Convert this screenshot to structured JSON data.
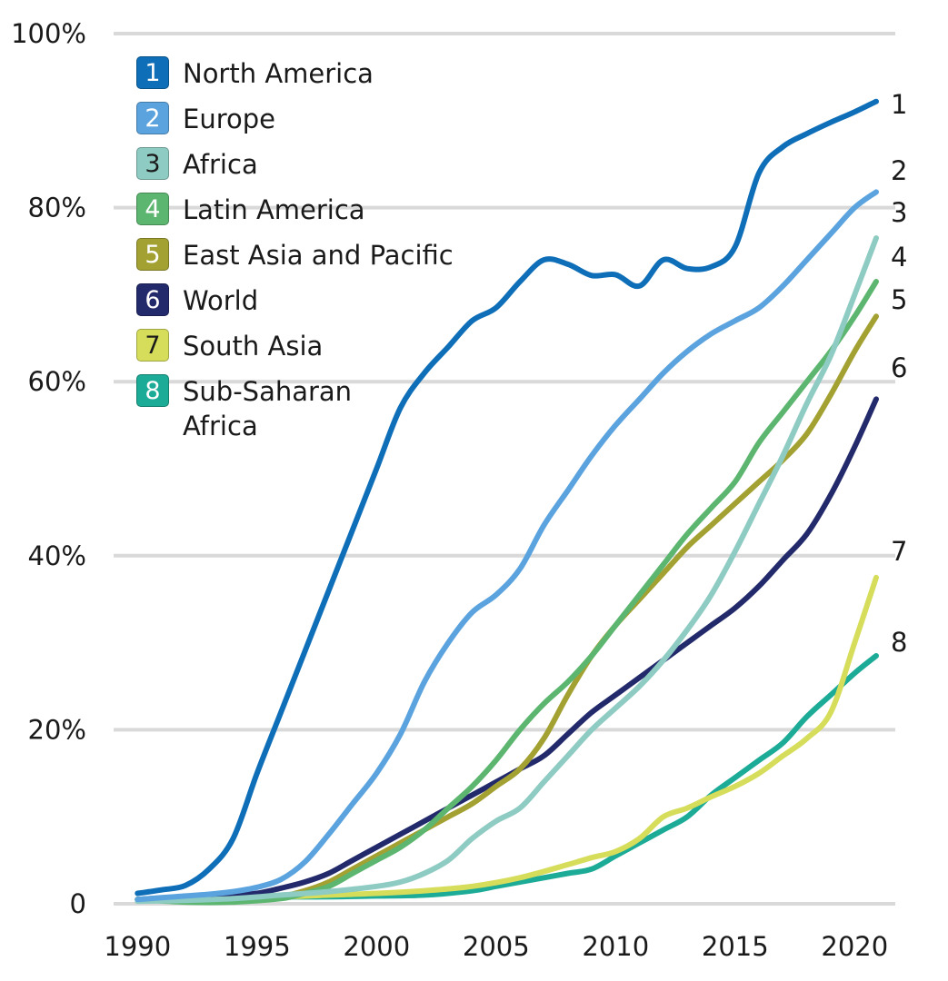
{
  "chart_data": {
    "type": "line",
    "title": "",
    "xlabel": "",
    "ylabel": "",
    "ylim": [
      0,
      100
    ],
    "xlim": [
      1990,
      2021
    ],
    "y_ticks": [
      "0",
      "20%",
      "40%",
      "60%",
      "80%",
      "100%"
    ],
    "y_tick_values": [
      0,
      20,
      40,
      60,
      80,
      100
    ],
    "x_ticks": [
      "1990",
      "1995",
      "2000",
      "2005",
      "2010",
      "2015",
      "2020"
    ],
    "x_tick_values": [
      1990,
      1995,
      2000,
      2005,
      2010,
      2015,
      2020
    ],
    "grid": true,
    "legend_position": "top-left",
    "series": [
      {
        "num": "1",
        "name": "North America",
        "color": "#0e6eb8",
        "x": [
          1990,
          1991,
          1992,
          1993,
          1994,
          1995,
          1996,
          1997,
          1998,
          1999,
          2000,
          2001,
          2002,
          2003,
          2004,
          2005,
          2006,
          2007,
          2008,
          2009,
          2010,
          2011,
          2012,
          2013,
          2014,
          2015,
          2016,
          2017,
          2018,
          2019,
          2020,
          2020.9
        ],
        "y": [
          1.2,
          1.6,
          2.1,
          4.0,
          7.5,
          15,
          22,
          29,
          36,
          43,
          50,
          57,
          61,
          64,
          67,
          68.5,
          71.5,
          74,
          73.5,
          72.2,
          72.3,
          71.0,
          74.0,
          73.0,
          73.2,
          75.5,
          84.0,
          87,
          88.5,
          89.8,
          91,
          92.2
        ]
      },
      {
        "num": "2",
        "name": "Europe",
        "color": "#5ba3de",
        "x": [
          1990,
          1991,
          1992,
          1993,
          1994,
          1995,
          1996,
          1997,
          1998,
          1999,
          2000,
          2001,
          2002,
          2003,
          2004,
          2005,
          2006,
          2007,
          2008,
          2009,
          2010,
          2011,
          2012,
          2013,
          2014,
          2015,
          2016,
          2017,
          2018,
          2019,
          2020,
          2020.9
        ],
        "y": [
          0.5,
          0.7,
          0.9,
          1.1,
          1.4,
          1.9,
          2.8,
          4.8,
          8,
          11.5,
          15,
          19.5,
          25.5,
          30,
          33.5,
          35.5,
          38.5,
          43.5,
          47.5,
          51.5,
          55,
          58,
          61,
          63.5,
          65.5,
          67,
          68.5,
          71,
          74,
          77,
          80,
          81.8
        ]
      },
      {
        "num": "3",
        "name": "Africa",
        "color": "#8ecbc2",
        "x": [
          1990,
          1992,
          1994,
          1996,
          1998,
          2000,
          2001,
          2002,
          2003,
          2004,
          2005,
          2006,
          2007,
          2008,
          2009,
          2010,
          2011,
          2012,
          2013,
          2014,
          2015,
          2016,
          2017,
          2018,
          2019,
          2020,
          2020.9
        ],
        "y": [
          0.3,
          0.4,
          0.6,
          1.0,
          1.4,
          2.0,
          2.5,
          3.5,
          5.0,
          7.5,
          9.5,
          11,
          14,
          17,
          20,
          22.5,
          25,
          28,
          31.5,
          35.5,
          40.5,
          46,
          51.5,
          57.5,
          63,
          70,
          76.5
        ]
      },
      {
        "num": "4",
        "name": "Latin America",
        "color": "#5cb670",
        "x": [
          1990,
          1992,
          1994,
          1996,
          1997,
          1998,
          1999,
          2000,
          2001,
          2002,
          2003,
          2004,
          2005,
          2006,
          2007,
          2008,
          2009,
          2010,
          2011,
          2012,
          2013,
          2014,
          2015,
          2016,
          2017,
          2018,
          2019,
          2020,
          2020.9
        ],
        "y": [
          0.5,
          0.2,
          0.2,
          0.6,
          1.2,
          2.0,
          3.5,
          5,
          6.5,
          8.5,
          11,
          13.5,
          16.5,
          20,
          23,
          25.5,
          28.5,
          32,
          35.5,
          39,
          42.5,
          45.5,
          48.5,
          53,
          56.5,
          60,
          63.5,
          67.5,
          71.5
        ]
      },
      {
        "num": "5",
        "name": "East Asia and Pacific",
        "color": "#a3a132",
        "x": [
          1990,
          1992,
          1994,
          1996,
          1997,
          1998,
          1999,
          2000,
          2001,
          2002,
          2003,
          2004,
          2005,
          2006,
          2007,
          2008,
          2009,
          2010,
          2011,
          2012,
          2013,
          2014,
          2015,
          2016,
          2017,
          2018,
          2019,
          2020,
          2020.9
        ],
        "y": [
          0.5,
          0.4,
          0.5,
          0.9,
          1.5,
          2.5,
          4,
          5.5,
          7,
          8.5,
          10,
          11.5,
          13.5,
          15.5,
          19,
          24,
          28.5,
          32,
          35,
          38,
          41,
          43.5,
          46,
          48.5,
          51,
          54,
          58.5,
          63.5,
          67.5
        ]
      },
      {
        "num": "6",
        "name": "World",
        "color": "#232a6b",
        "x": [
          1990,
          1992,
          1994,
          1995,
          1996,
          1997,
          1998,
          1999,
          2000,
          2001,
          2002,
          2003,
          2004,
          2005,
          2006,
          2007,
          2008,
          2009,
          2010,
          2011,
          2012,
          2013,
          2014,
          2015,
          2016,
          2017,
          2018,
          2019,
          2020,
          2020.9
        ],
        "y": [
          0.5,
          0.8,
          1.0,
          1.2,
          1.8,
          2.5,
          3.5,
          5,
          6.5,
          8,
          9.5,
          11,
          12.5,
          14,
          15.5,
          17,
          19.5,
          22,
          24,
          26,
          28,
          30,
          32,
          34,
          36.5,
          39.5,
          42.5,
          47,
          52.5,
          58
        ]
      },
      {
        "num": "7",
        "name": "South Asia",
        "color": "#d6dd5a",
        "x": [
          1990,
          1992,
          1994,
          1996,
          1998,
          2000,
          2002,
          2004,
          2006,
          2008,
          2009,
          2010,
          2011,
          2012,
          2013,
          2014,
          2015,
          2016,
          2017,
          2018,
          2019,
          2020,
          2020.9
        ],
        "y": [
          0.5,
          0.6,
          0.7,
          0.8,
          1.0,
          1.2,
          1.5,
          2,
          3,
          4.5,
          5.3,
          6.0,
          7.5,
          10,
          11,
          12.3,
          13.5,
          15,
          17,
          19,
          22,
          30,
          37.5
        ]
      },
      {
        "num": "8",
        "name": "Sub-Saharan Africa",
        "color": "#1cab96",
        "x": [
          1990,
          1992,
          1994,
          1996,
          1998,
          2000,
          2002,
          2004,
          2005,
          2006,
          2007,
          2008,
          2009,
          2010,
          2011,
          2012,
          2013,
          2014,
          2015,
          2016,
          2017,
          2018,
          2019,
          2020,
          2020.9
        ],
        "y": [
          0.5,
          0.6,
          0.7,
          0.8,
          0.8,
          0.9,
          1.0,
          1.5,
          2,
          2.5,
          3,
          3.5,
          4,
          5.5,
          7,
          8.5,
          10,
          12.5,
          14.5,
          16.5,
          18.5,
          21.5,
          24,
          26.5,
          28.5
        ]
      }
    ]
  }
}
